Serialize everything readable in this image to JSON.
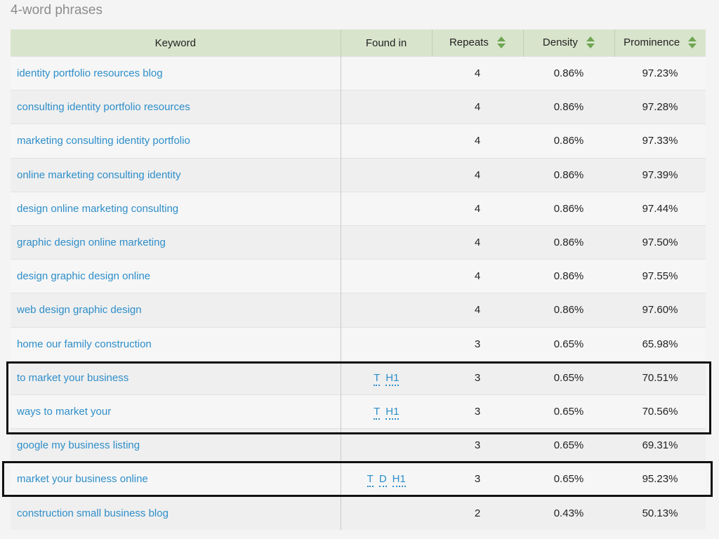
{
  "section_title": "4-word phrases",
  "columns": {
    "keyword": "Keyword",
    "found_in": "Found in",
    "repeats": "Repeats",
    "density": "Density",
    "prominence": "Prominence"
  },
  "rows": [
    {
      "keyword": "identity portfolio resources blog",
      "found_in": [],
      "repeats": "4",
      "density": "0.86%",
      "prominence": "97.23%"
    },
    {
      "keyword": "consulting identity portfolio resources",
      "found_in": [],
      "repeats": "4",
      "density": "0.86%",
      "prominence": "97.28%"
    },
    {
      "keyword": "marketing consulting identity portfolio",
      "found_in": [],
      "repeats": "4",
      "density": "0.86%",
      "prominence": "97.33%"
    },
    {
      "keyword": "online marketing consulting identity",
      "found_in": [],
      "repeats": "4",
      "density": "0.86%",
      "prominence": "97.39%"
    },
    {
      "keyword": "design online marketing consulting",
      "found_in": [],
      "repeats": "4",
      "density": "0.86%",
      "prominence": "97.44%"
    },
    {
      "keyword": "graphic design online marketing",
      "found_in": [],
      "repeats": "4",
      "density": "0.86%",
      "prominence": "97.50%"
    },
    {
      "keyword": "design graphic design online",
      "found_in": [],
      "repeats": "4",
      "density": "0.86%",
      "prominence": "97.55%"
    },
    {
      "keyword": "web design graphic design",
      "found_in": [],
      "repeats": "4",
      "density": "0.86%",
      "prominence": "97.60%"
    },
    {
      "keyword": "home our family construction",
      "found_in": [],
      "repeats": "3",
      "density": "0.65%",
      "prominence": "65.98%"
    },
    {
      "keyword": "to market your business",
      "found_in": [
        "T",
        "H1"
      ],
      "repeats": "3",
      "density": "0.65%",
      "prominence": "70.51%"
    },
    {
      "keyword": "ways to market your",
      "found_in": [
        "T",
        "H1"
      ],
      "repeats": "3",
      "density": "0.65%",
      "prominence": "70.56%"
    },
    {
      "keyword": "google my business listing",
      "found_in": [],
      "repeats": "3",
      "density": "0.65%",
      "prominence": "69.31%"
    },
    {
      "keyword": "market your business online",
      "found_in": [
        "T",
        "D",
        "H1"
      ],
      "repeats": "3",
      "density": "0.65%",
      "prominence": "95.23%"
    },
    {
      "keyword": "construction small business blog",
      "found_in": [],
      "repeats": "2",
      "density": "0.43%",
      "prominence": "50.13%"
    }
  ],
  "colors": {
    "link": "#2e8ec9",
    "header_bg": "#d8e4cc",
    "sort_arrow": "#6fa552",
    "highlight_border": "#111111"
  }
}
